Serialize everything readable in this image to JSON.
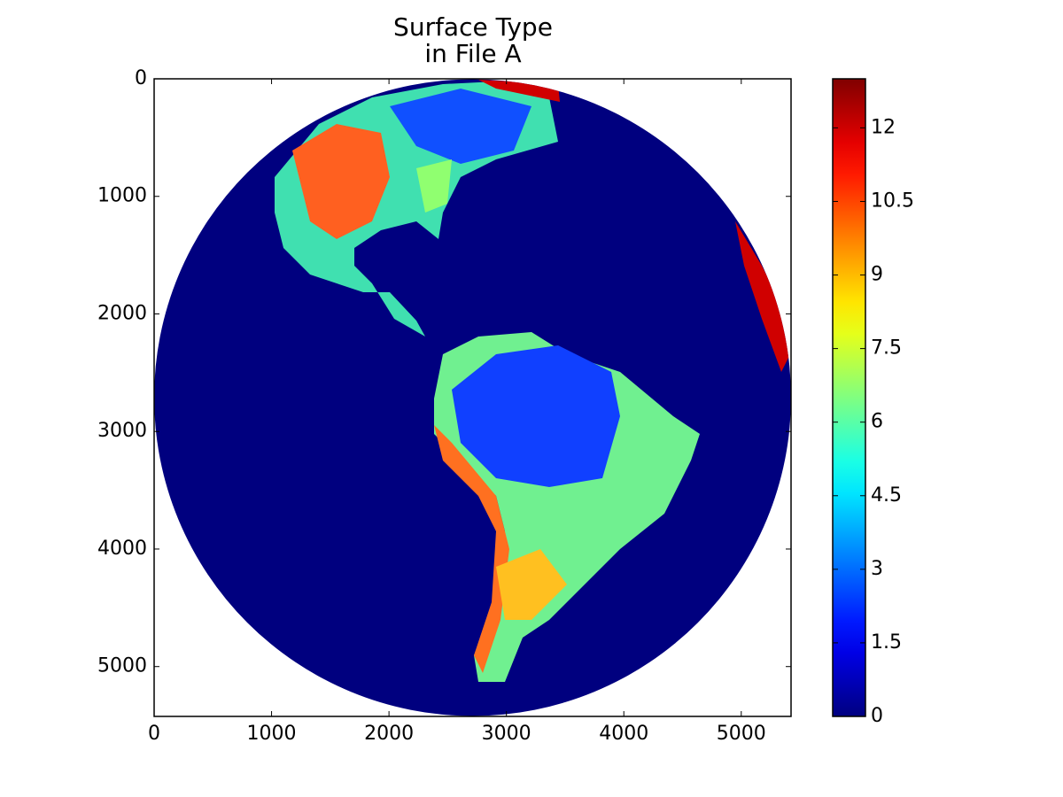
{
  "chart_data": {
    "type": "image",
    "title": "Surface Type\nin File A",
    "xlim": [
      0,
      5424
    ],
    "xticks": [
      0,
      1000,
      2000,
      3000,
      4000,
      5000
    ],
    "ylim": [
      5424,
      0
    ],
    "yticks": [
      0,
      1000,
      2000,
      3000,
      4000,
      5000
    ],
    "background": "#00007f",
    "colorbar": {
      "colormap": "jet",
      "lim": [
        0,
        13
      ],
      "ticks": [
        0,
        1.5,
        3,
        4.5,
        6,
        7.5,
        9,
        10.5,
        12
      ]
    }
  }
}
